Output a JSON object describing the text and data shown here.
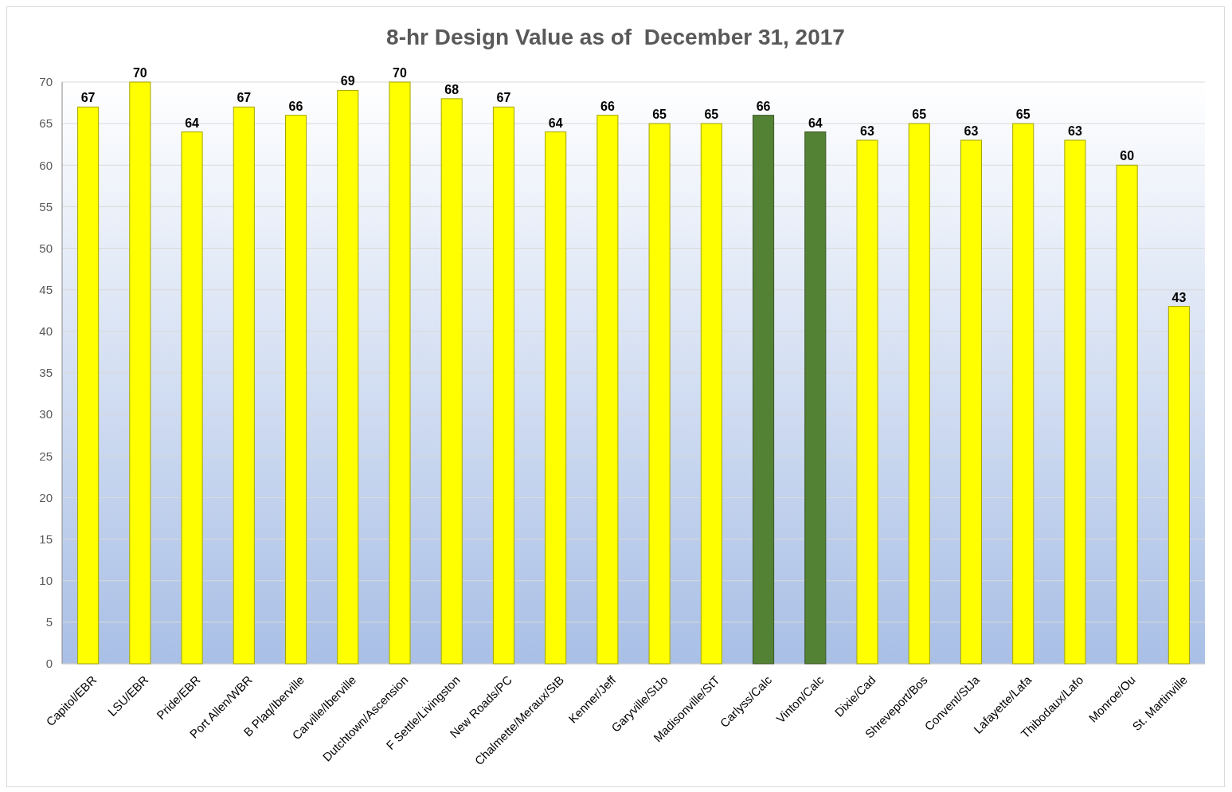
{
  "chart_data": {
    "type": "bar",
    "title": "8-hr Design Value as of  December 31, 2017",
    "categories": [
      "Capitol/EBR",
      "LSU/EBR",
      "Pride/EBR",
      "Port Allen/WBR",
      "B Plaq/Iberville",
      "Carville/Iberville",
      "Dutchtown/Ascension",
      "F Settle/Livingston",
      "New Roads/PC",
      "Chalmette/Meraux/StB",
      "Kenner/Jeff",
      "Garyville/StJo",
      "Madisonville/StT",
      "Carlyss/Calc",
      "Vinton/Calc",
      "Dixie/Cad",
      "Shreveport/Bos",
      "Convent/StJa",
      "Lafayette/Lafa",
      "Thibodaux/Lafo",
      "Monroe/Ou",
      "St. Martinville"
    ],
    "values": [
      67,
      70,
      64,
      67,
      66,
      69,
      70,
      68,
      67,
      64,
      66,
      65,
      65,
      66,
      64,
      63,
      65,
      63,
      65,
      63,
      60,
      43
    ],
    "colors": [
      "#ffff00",
      "#ffff00",
      "#ffff00",
      "#ffff00",
      "#ffff00",
      "#ffff00",
      "#ffff00",
      "#ffff00",
      "#ffff00",
      "#ffff00",
      "#ffff00",
      "#ffff00",
      "#ffff00",
      "#548235",
      "#548235",
      "#ffff00",
      "#ffff00",
      "#ffff00",
      "#ffff00",
      "#ffff00",
      "#ffff00",
      "#ffff00"
    ],
    "ylim": [
      0,
      70
    ],
    "yticks": [
      0,
      5,
      10,
      15,
      20,
      25,
      30,
      35,
      40,
      45,
      50,
      55,
      60,
      65,
      70
    ],
    "grid": "y",
    "data_labels": true
  }
}
